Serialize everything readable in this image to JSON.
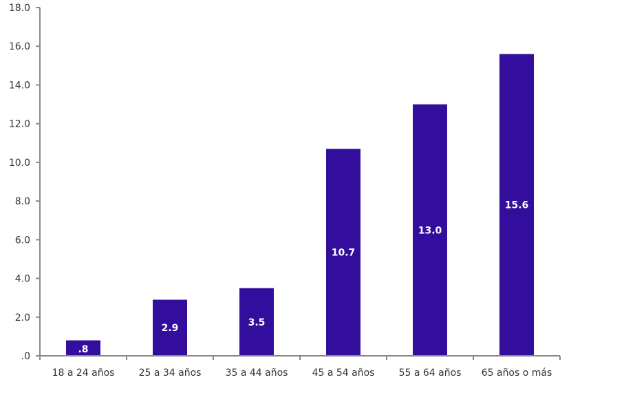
{
  "chart_data": {
    "type": "bar",
    "title": "",
    "xlabel": "",
    "ylabel": "",
    "categories": [
      "18 a 24 años",
      "25 a 34 años",
      "35 a 44 años",
      "45 a 54 años",
      "55 a 64 años",
      "65 años o más"
    ],
    "values": [
      0.8,
      2.9,
      3.5,
      10.7,
      13.0,
      15.6
    ],
    "data_labels": [
      ".8",
      "2.9",
      "3.5",
      "10.7",
      "13.0",
      "15.6"
    ],
    "ylim": [
      0,
      18
    ],
    "yticks": [
      0,
      2,
      4,
      6,
      8,
      10,
      12,
      14,
      16,
      18
    ],
    "ytick_labels": [
      ".0",
      "2.0",
      "4.0",
      "6.0",
      "8.0",
      "10.0",
      "12.0",
      "14.0",
      "16.0",
      "18.0"
    ],
    "grid": false,
    "legend": "none",
    "colors": {
      "bar": "#330e9c",
      "axis": "#898989",
      "label": "#ffffff",
      "text": "#333333"
    }
  }
}
